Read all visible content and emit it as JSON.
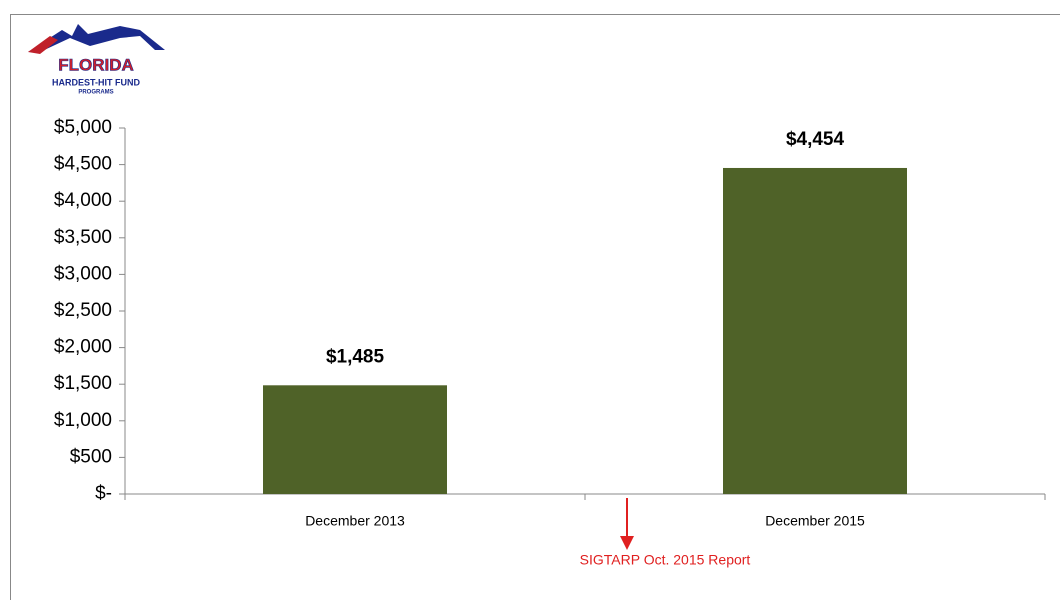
{
  "logo": {
    "name": "FLORIDA",
    "line1": "HARDEST-HIT FUND",
    "line2": "PROGRAMS"
  },
  "chart_data": {
    "type": "bar",
    "categories": [
      "December 2013",
      "December 2015"
    ],
    "values": [
      1485,
      4454
    ],
    "value_labels": [
      "$1,485",
      "$4,454"
    ],
    "color": "#4f6228",
    "ylim": [
      0,
      5000
    ],
    "yticks": [
      {
        "value": 0,
        "label": "$-"
      },
      {
        "value": 500,
        "label": "$500"
      },
      {
        "value": 1000,
        "label": "$1,000"
      },
      {
        "value": 1500,
        "label": "$1,500"
      },
      {
        "value": 2000,
        "label": "$2,000"
      },
      {
        "value": 2500,
        "label": "$2,500"
      },
      {
        "value": 3000,
        "label": "$3,000"
      },
      {
        "value": 3500,
        "label": "$3,500"
      },
      {
        "value": 4000,
        "label": "$4,000"
      },
      {
        "value": 4500,
        "label": "$4,500"
      },
      {
        "value": 5000,
        "label": "$5,000"
      }
    ],
    "annotation": "SIGTARP Oct. 2015 Report"
  }
}
